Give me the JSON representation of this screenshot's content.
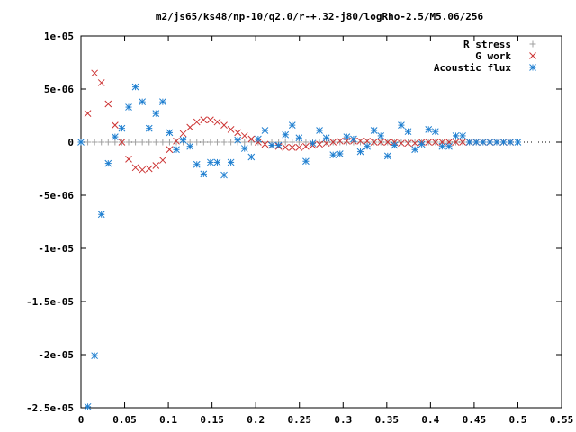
{
  "chart_data": {
    "type": "scatter",
    "title": "m2/js65/ks48/np-10/q2.0/r-+.32-j80/logRho-2.5/M5.06/256",
    "xlabel": "",
    "ylabel": "",
    "xlim": [
      0,
      0.55
    ],
    "ylim": [
      -2.5e-05,
      1e-05
    ],
    "x_ticks": [
      0,
      0.05,
      0.1,
      0.15,
      0.2,
      0.25,
      0.3,
      0.35,
      0.4,
      0.45,
      0.5,
      0.55
    ],
    "x_tick_labels": [
      "0",
      "0.05",
      "0.1",
      "0.15",
      "0.2",
      "0.25",
      "0.3",
      "0.35",
      "0.4",
      "0.45",
      "0.5",
      "0.55"
    ],
    "y_ticks": [
      1e-05,
      5e-06,
      0,
      -5e-06,
      -1e-05,
      -1.5e-05,
      -2e-05,
      -2.5e-05
    ],
    "y_tick_labels": [
      "1e-05",
      "5e-06",
      "0",
      "-5e-06",
      "-1e-05",
      "-1.5e-05",
      "-2e-05",
      "-2.5e-05"
    ],
    "grid": false,
    "legend_position": "top-right",
    "zero_line": true,
    "series": [
      {
        "name": "R stress",
        "marker": "plus",
        "color": "#a0a0a0",
        "x": [
          0.0,
          0.0078,
          0.0156,
          0.0234,
          0.0312,
          0.039,
          0.0468,
          0.0546,
          0.0624,
          0.0702,
          0.078,
          0.0858,
          0.0936,
          0.1014,
          0.1092,
          0.117,
          0.1248,
          0.1326,
          0.1404,
          0.1482,
          0.156,
          0.1638,
          0.1716,
          0.1794,
          0.1872,
          0.195,
          0.2028,
          0.2106,
          0.2184,
          0.2262,
          0.234,
          0.2418,
          0.2496,
          0.2574,
          0.2652,
          0.273,
          0.2808,
          0.2886,
          0.2964,
          0.3042,
          0.312,
          0.3198,
          0.3276,
          0.3354,
          0.3432,
          0.351,
          0.3588,
          0.3666,
          0.3744,
          0.3822,
          0.39,
          0.3978,
          0.4056,
          0.4134,
          0.4212,
          0.429,
          0.4368,
          0.4446,
          0.4524,
          0.4602,
          0.468,
          0.4758,
          0.4836,
          0.4914,
          0.5
        ],
        "y": [
          0,
          0,
          0,
          0,
          0,
          0,
          0,
          0,
          0,
          0,
          0,
          0,
          0,
          0,
          0,
          0,
          0,
          0,
          0,
          0,
          0,
          0,
          0,
          0,
          0,
          0,
          0,
          0,
          0,
          0,
          0,
          0,
          0,
          0,
          0,
          0,
          0,
          0,
          0,
          0,
          0,
          0,
          0,
          0,
          0,
          0,
          0,
          0,
          0,
          0,
          0,
          0,
          0,
          0,
          0,
          0,
          0,
          0,
          0,
          0,
          0,
          0,
          0,
          0,
          0
        ]
      },
      {
        "name": "G work",
        "marker": "cross",
        "color": "#cc3333",
        "x": [
          0.0078,
          0.0156,
          0.0234,
          0.0312,
          0.039,
          0.0468,
          0.0546,
          0.0624,
          0.0702,
          0.078,
          0.0858,
          0.0936,
          0.1014,
          0.1092,
          0.117,
          0.1248,
          0.1326,
          0.1404,
          0.1482,
          0.156,
          0.1638,
          0.1716,
          0.1794,
          0.1872,
          0.195,
          0.2028,
          0.2106,
          0.2184,
          0.2262,
          0.234,
          0.2418,
          0.2496,
          0.2574,
          0.2652,
          0.273,
          0.2808,
          0.2886,
          0.2964,
          0.3042,
          0.312,
          0.3198,
          0.3276,
          0.3354,
          0.3432,
          0.351,
          0.3588,
          0.3666,
          0.3744,
          0.3822,
          0.39,
          0.3978,
          0.4056,
          0.4134,
          0.4212,
          0.429,
          0.4368,
          0.4446,
          0.4524,
          0.4602,
          0.468,
          0.4758,
          0.4836,
          0.4914
        ],
        "y": [
          2.7e-06,
          6.5e-06,
          5.6e-06,
          3.6e-06,
          1.6e-06,
          0.0,
          -1.6e-06,
          -2.4e-06,
          -2.6e-06,
          -2.5e-06,
          -2.2e-06,
          -1.7e-06,
          -7e-07,
          1e-07,
          8e-07,
          1.4e-06,
          1.9e-06,
          2.1e-06,
          2.1e-06,
          1.9e-06,
          1.6e-06,
          1.2e-06,
          9e-07,
          6e-07,
          3e-07,
          0.0,
          -2e-07,
          -3e-07,
          -4e-07,
          -5e-07,
          -5e-07,
          -5e-07,
          -4e-07,
          -3e-07,
          -2e-07,
          -1e-07,
          0.0,
          1e-07,
          1e-07,
          1e-07,
          1e-07,
          1e-07,
          0.0,
          0.0,
          0.0,
          0.0,
          -1e-07,
          -1e-07,
          -1e-07,
          0.0,
          0.0,
          0.0,
          0.0,
          0.0,
          0.0,
          0.0,
          0.0,
          0.0,
          0.0,
          0.0,
          0.0,
          0.0,
          0.0
        ]
      },
      {
        "name": "Acoustic flux",
        "marker": "star",
        "color": "#1f7fd0",
        "x": [
          0.0,
          0.0078,
          0.0156,
          0.0234,
          0.0312,
          0.039,
          0.0468,
          0.0546,
          0.0624,
          0.0702,
          0.078,
          0.0858,
          0.0936,
          0.1014,
          0.1092,
          0.117,
          0.1248,
          0.1326,
          0.1404,
          0.1482,
          0.156,
          0.1638,
          0.1716,
          0.1794,
          0.1872,
          0.195,
          0.2028,
          0.2106,
          0.2184,
          0.2262,
          0.234,
          0.2418,
          0.2496,
          0.2574,
          0.2652,
          0.273,
          0.2808,
          0.2886,
          0.2964,
          0.3042,
          0.312,
          0.3198,
          0.3276,
          0.3354,
          0.3432,
          0.351,
          0.3588,
          0.3666,
          0.3744,
          0.3822,
          0.39,
          0.3978,
          0.4056,
          0.4134,
          0.4212,
          0.429,
          0.4368,
          0.4446,
          0.4524,
          0.4602,
          0.468,
          0.4758,
          0.4836,
          0.4914,
          0.5
        ],
        "y": [
          0.0,
          -2.49e-05,
          -2.01e-05,
          -6.8e-06,
          -2e-06,
          5e-07,
          1.3e-06,
          3.3e-06,
          5.2e-06,
          3.8e-06,
          1.3e-06,
          2.7e-06,
          3.8e-06,
          9e-07,
          -7e-07,
          2e-07,
          -4e-07,
          -2.1e-06,
          -3e-06,
          -1.9e-06,
          -1.9e-06,
          -3.1e-06,
          -1.9e-06,
          2e-07,
          -6e-07,
          -1.4e-06,
          3e-07,
          1.1e-06,
          -3e-07,
          -3e-07,
          7e-07,
          1.6e-06,
          4e-07,
          -1.8e-06,
          -1e-07,
          1.1e-06,
          4e-07,
          -1.2e-06,
          -1.1e-06,
          5e-07,
          3e-07,
          -9e-07,
          -4e-07,
          1.1e-06,
          6e-07,
          -1.3e-06,
          -3e-07,
          1.6e-06,
          1e-06,
          -7e-07,
          -2e-07,
          1.2e-06,
          1e-06,
          -4e-07,
          -4e-07,
          6e-07,
          6e-07,
          0.0,
          0.0,
          0.0,
          0.0,
          0.0,
          0.0,
          0.0,
          0.0
        ]
      }
    ]
  }
}
